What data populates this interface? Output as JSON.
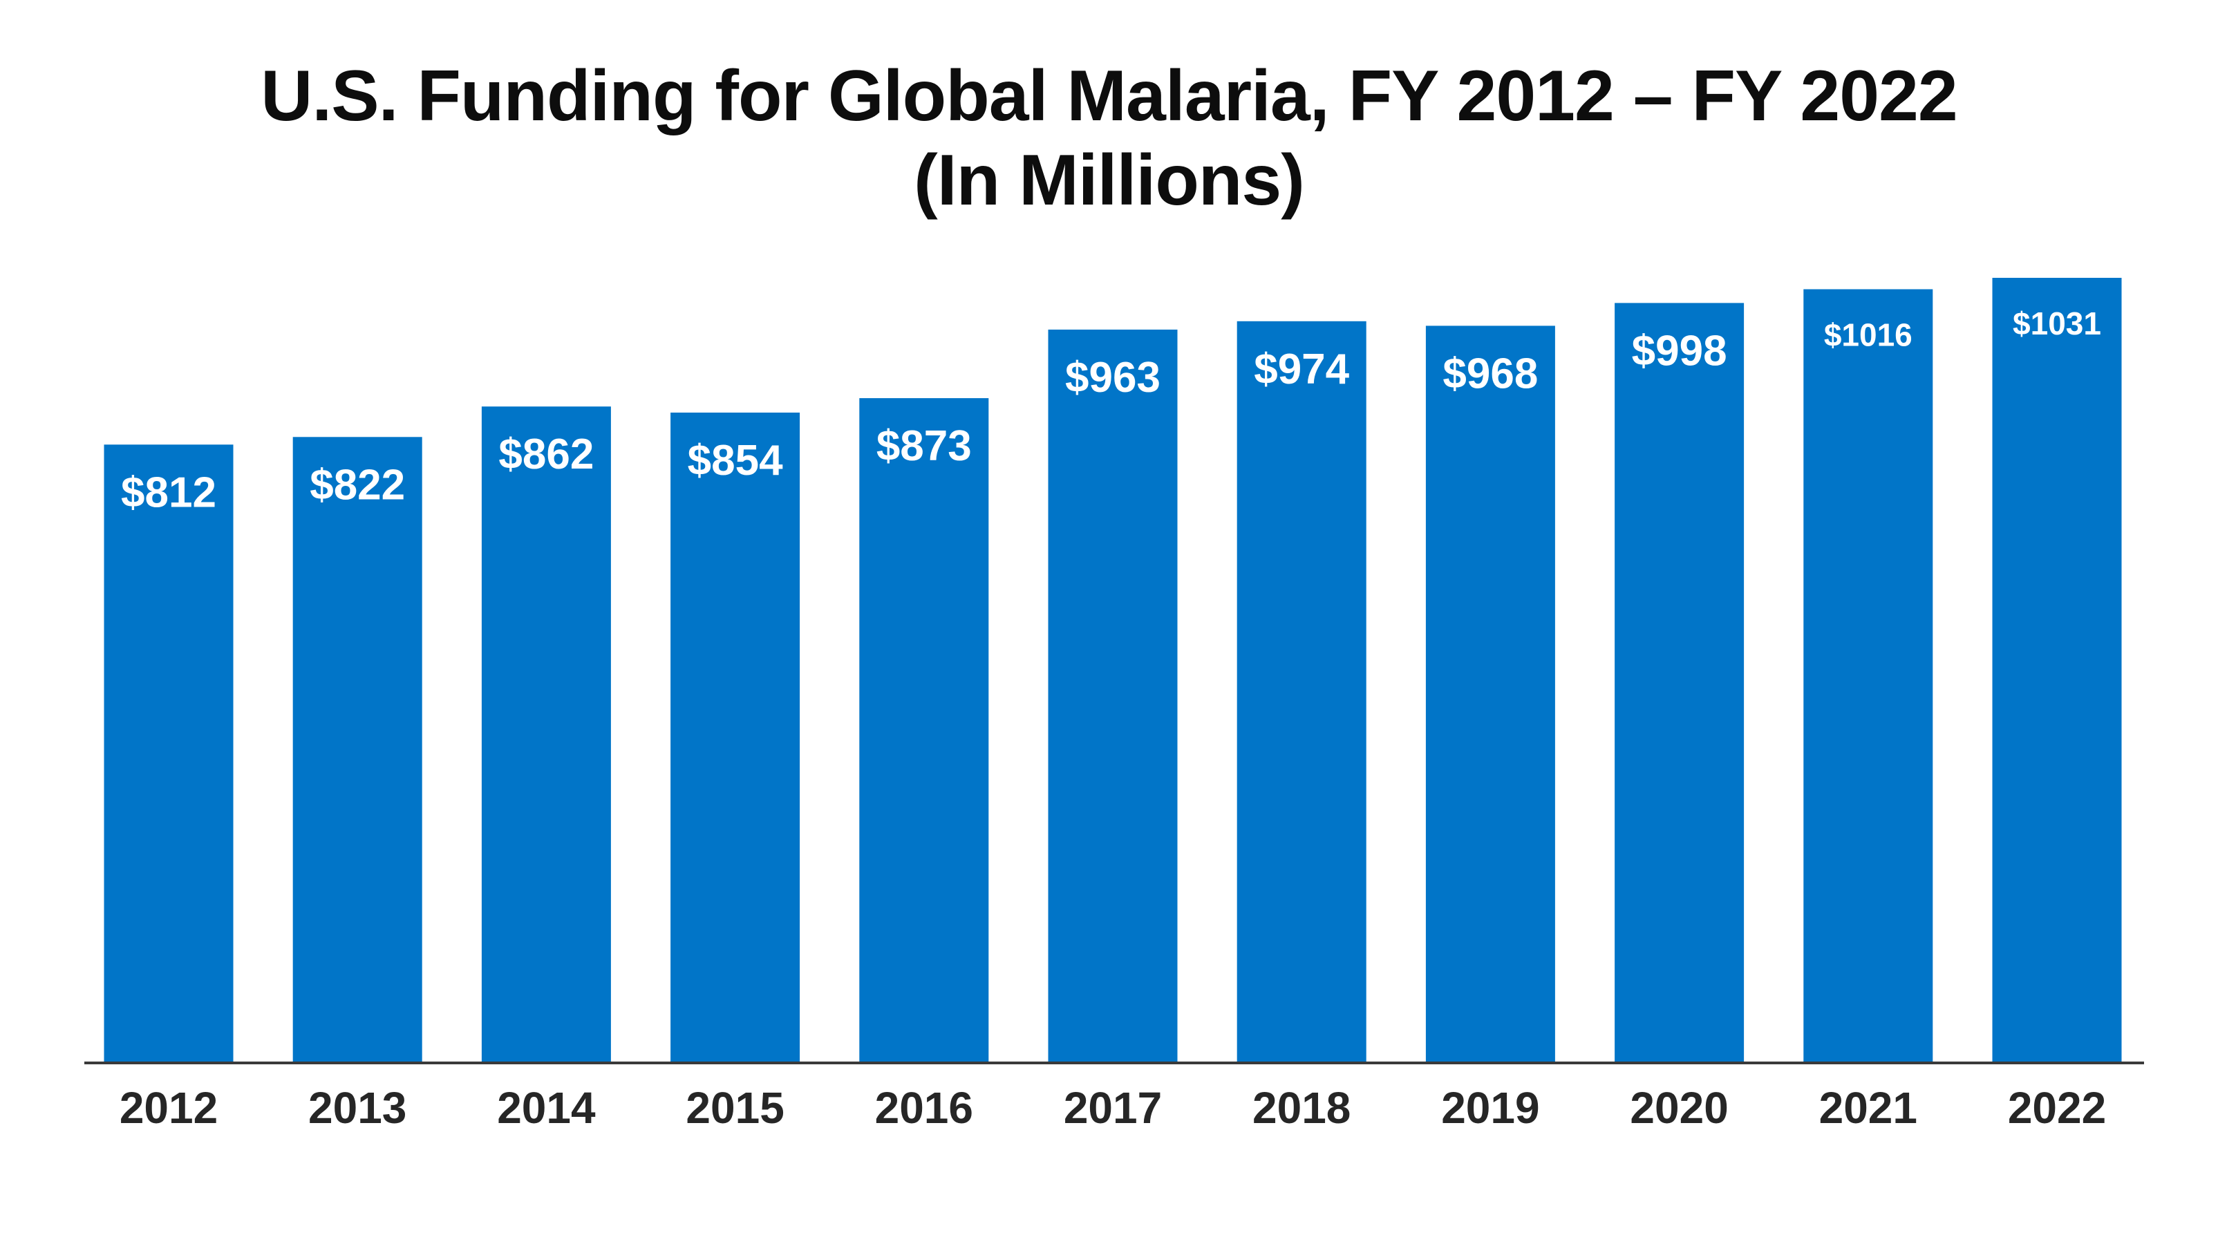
{
  "chart_data": {
    "type": "bar",
    "title": "U.S. Funding for Global Malaria, FY 2012 – FY 2022",
    "subtitle": "(In Millions)",
    "categories": [
      "2012",
      "2013",
      "2014",
      "2015",
      "2016",
      "2017",
      "2018",
      "2019",
      "2020",
      "2021",
      "2022"
    ],
    "values": [
      812,
      822,
      862,
      854,
      873,
      963,
      974,
      968,
      998,
      1016,
      1031
    ],
    "data_labels": [
      "$812",
      "$822",
      "$862",
      "$854",
      "$873",
      "$963",
      "$974",
      "$968",
      "$998",
      "$1016",
      "$1031"
    ],
    "xlabel": "",
    "ylabel": "",
    "ylim": [
      0,
      1031
    ],
    "grid": false,
    "legend": "none",
    "colors": {
      "bar": "#0175c8",
      "axis": "#3a3a3a",
      "title": "#0d0d0d",
      "tick": "#262626",
      "bar_label": "#ffffff"
    }
  }
}
